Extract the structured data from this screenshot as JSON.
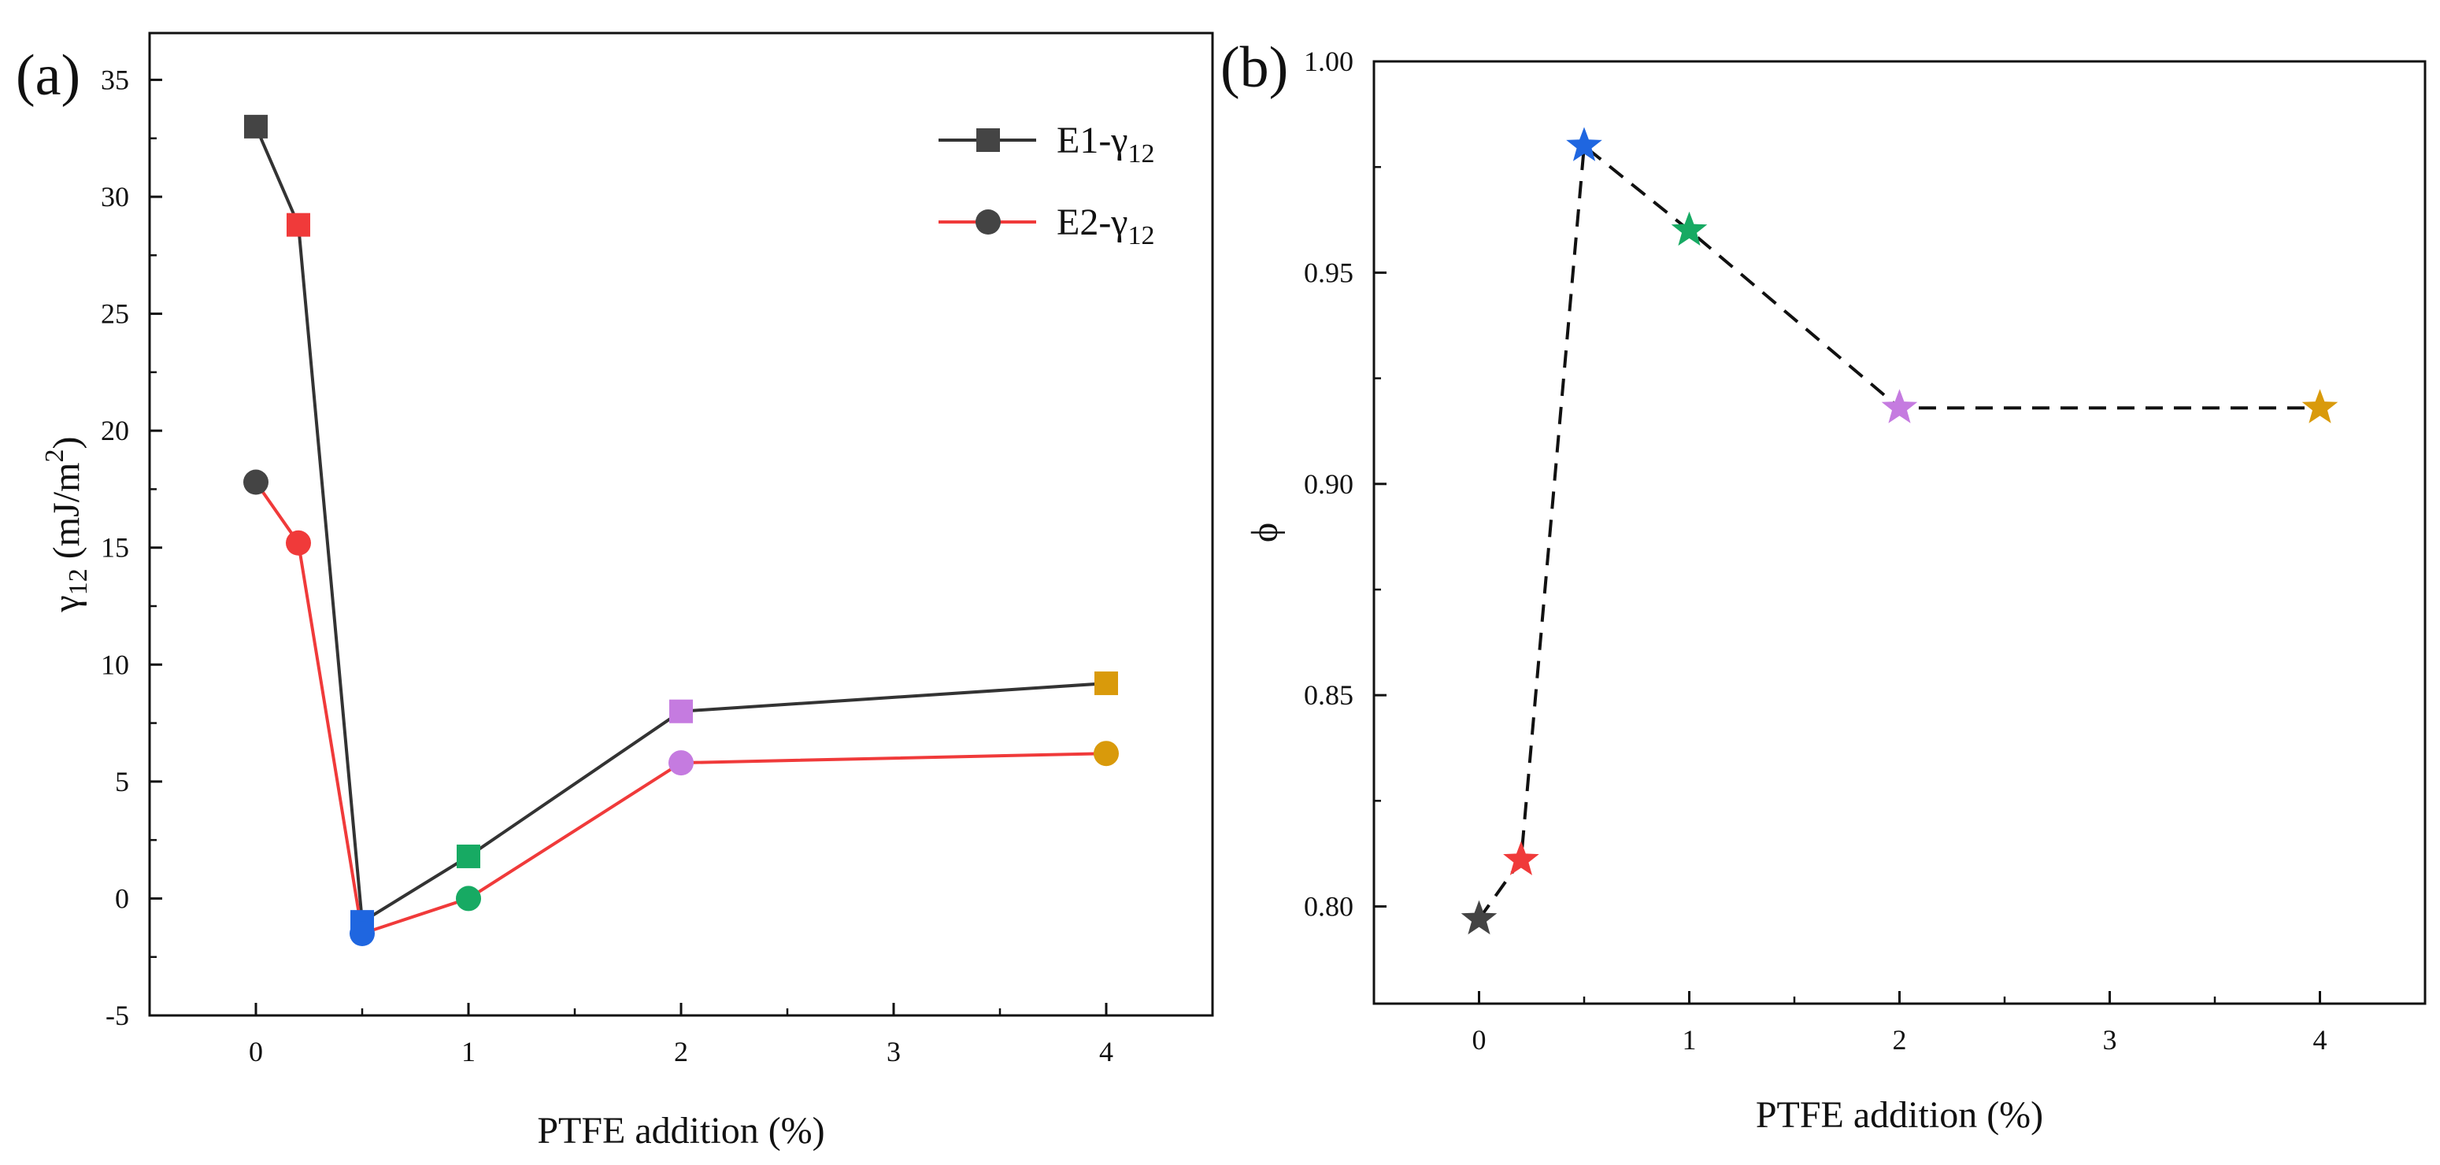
{
  "figure": {
    "panel_a_label": "(a)",
    "panel_b_label": "(b)"
  },
  "chart_data": [
    {
      "type": "line",
      "panel": "(a)",
      "xlabel": "PTFE addition (%)",
      "ylabel_main": "γ",
      "ylabel_sub": "12",
      "ylabel_unit": " (mJ/m",
      "ylabel_sup": "2",
      "ylabel_end": ")",
      "x_tick_labels": [
        "0",
        "1",
        "2",
        "3",
        "4"
      ],
      "x_tick_values": [
        0,
        1,
        2,
        3,
        4
      ],
      "xlim": [
        -0.5,
        4.5
      ],
      "ylim": [
        -5,
        37
      ],
      "y_ticks": [
        -5,
        0,
        5,
        10,
        15,
        20,
        25,
        30,
        35
      ],
      "legend_position": "top-right",
      "grid": false,
      "point_colors": [
        "#444444",
        "#f03a3a",
        "#1f66e0",
        "#17aa63",
        "#c57be0",
        "#d99a0b"
      ],
      "series": [
        {
          "name": "E1-γ",
          "name_sub": "12",
          "marker": "square",
          "line_color": "#333333",
          "x": [
            0,
            0.2,
            0.5,
            1,
            2,
            4
          ],
          "y": [
            33.0,
            28.8,
            -1.0,
            1.8,
            8.0,
            9.2
          ]
        },
        {
          "name": "E2-γ",
          "name_sub": "12",
          "marker": "circle",
          "line_color": "#f03a3a",
          "x": [
            0,
            0.2,
            0.5,
            1,
            2,
            4
          ],
          "y": [
            17.8,
            15.2,
            -1.5,
            0.0,
            5.8,
            6.2
          ]
        }
      ]
    },
    {
      "type": "line",
      "panel": "(b)",
      "xlabel": "PTFE addition (%)",
      "ylabel": "ϕ",
      "x_tick_labels": [
        "0",
        "1",
        "2",
        "3",
        "4"
      ],
      "x_tick_values": [
        0,
        1,
        2,
        3,
        4
      ],
      "xlim": [
        -0.5,
        4.5
      ],
      "ylim": [
        0.777,
        1.0
      ],
      "y_ticks": [
        0.8,
        0.85,
        0.9,
        0.95,
        1.0
      ],
      "y_tick_labels": [
        "0.80",
        "0.85",
        "0.90",
        "0.95",
        "1.00"
      ],
      "grid": false,
      "line_style": "dashed",
      "marker": "star",
      "point_colors": [
        "#444444",
        "#f03a3a",
        "#1f66e0",
        "#17aa63",
        "#c57be0",
        "#d99a0b"
      ],
      "series": [
        {
          "x": [
            0,
            0.2,
            0.5,
            1,
            2,
            4
          ],
          "y": [
            0.797,
            0.811,
            0.98,
            0.96,
            0.918,
            0.918
          ]
        }
      ]
    }
  ]
}
